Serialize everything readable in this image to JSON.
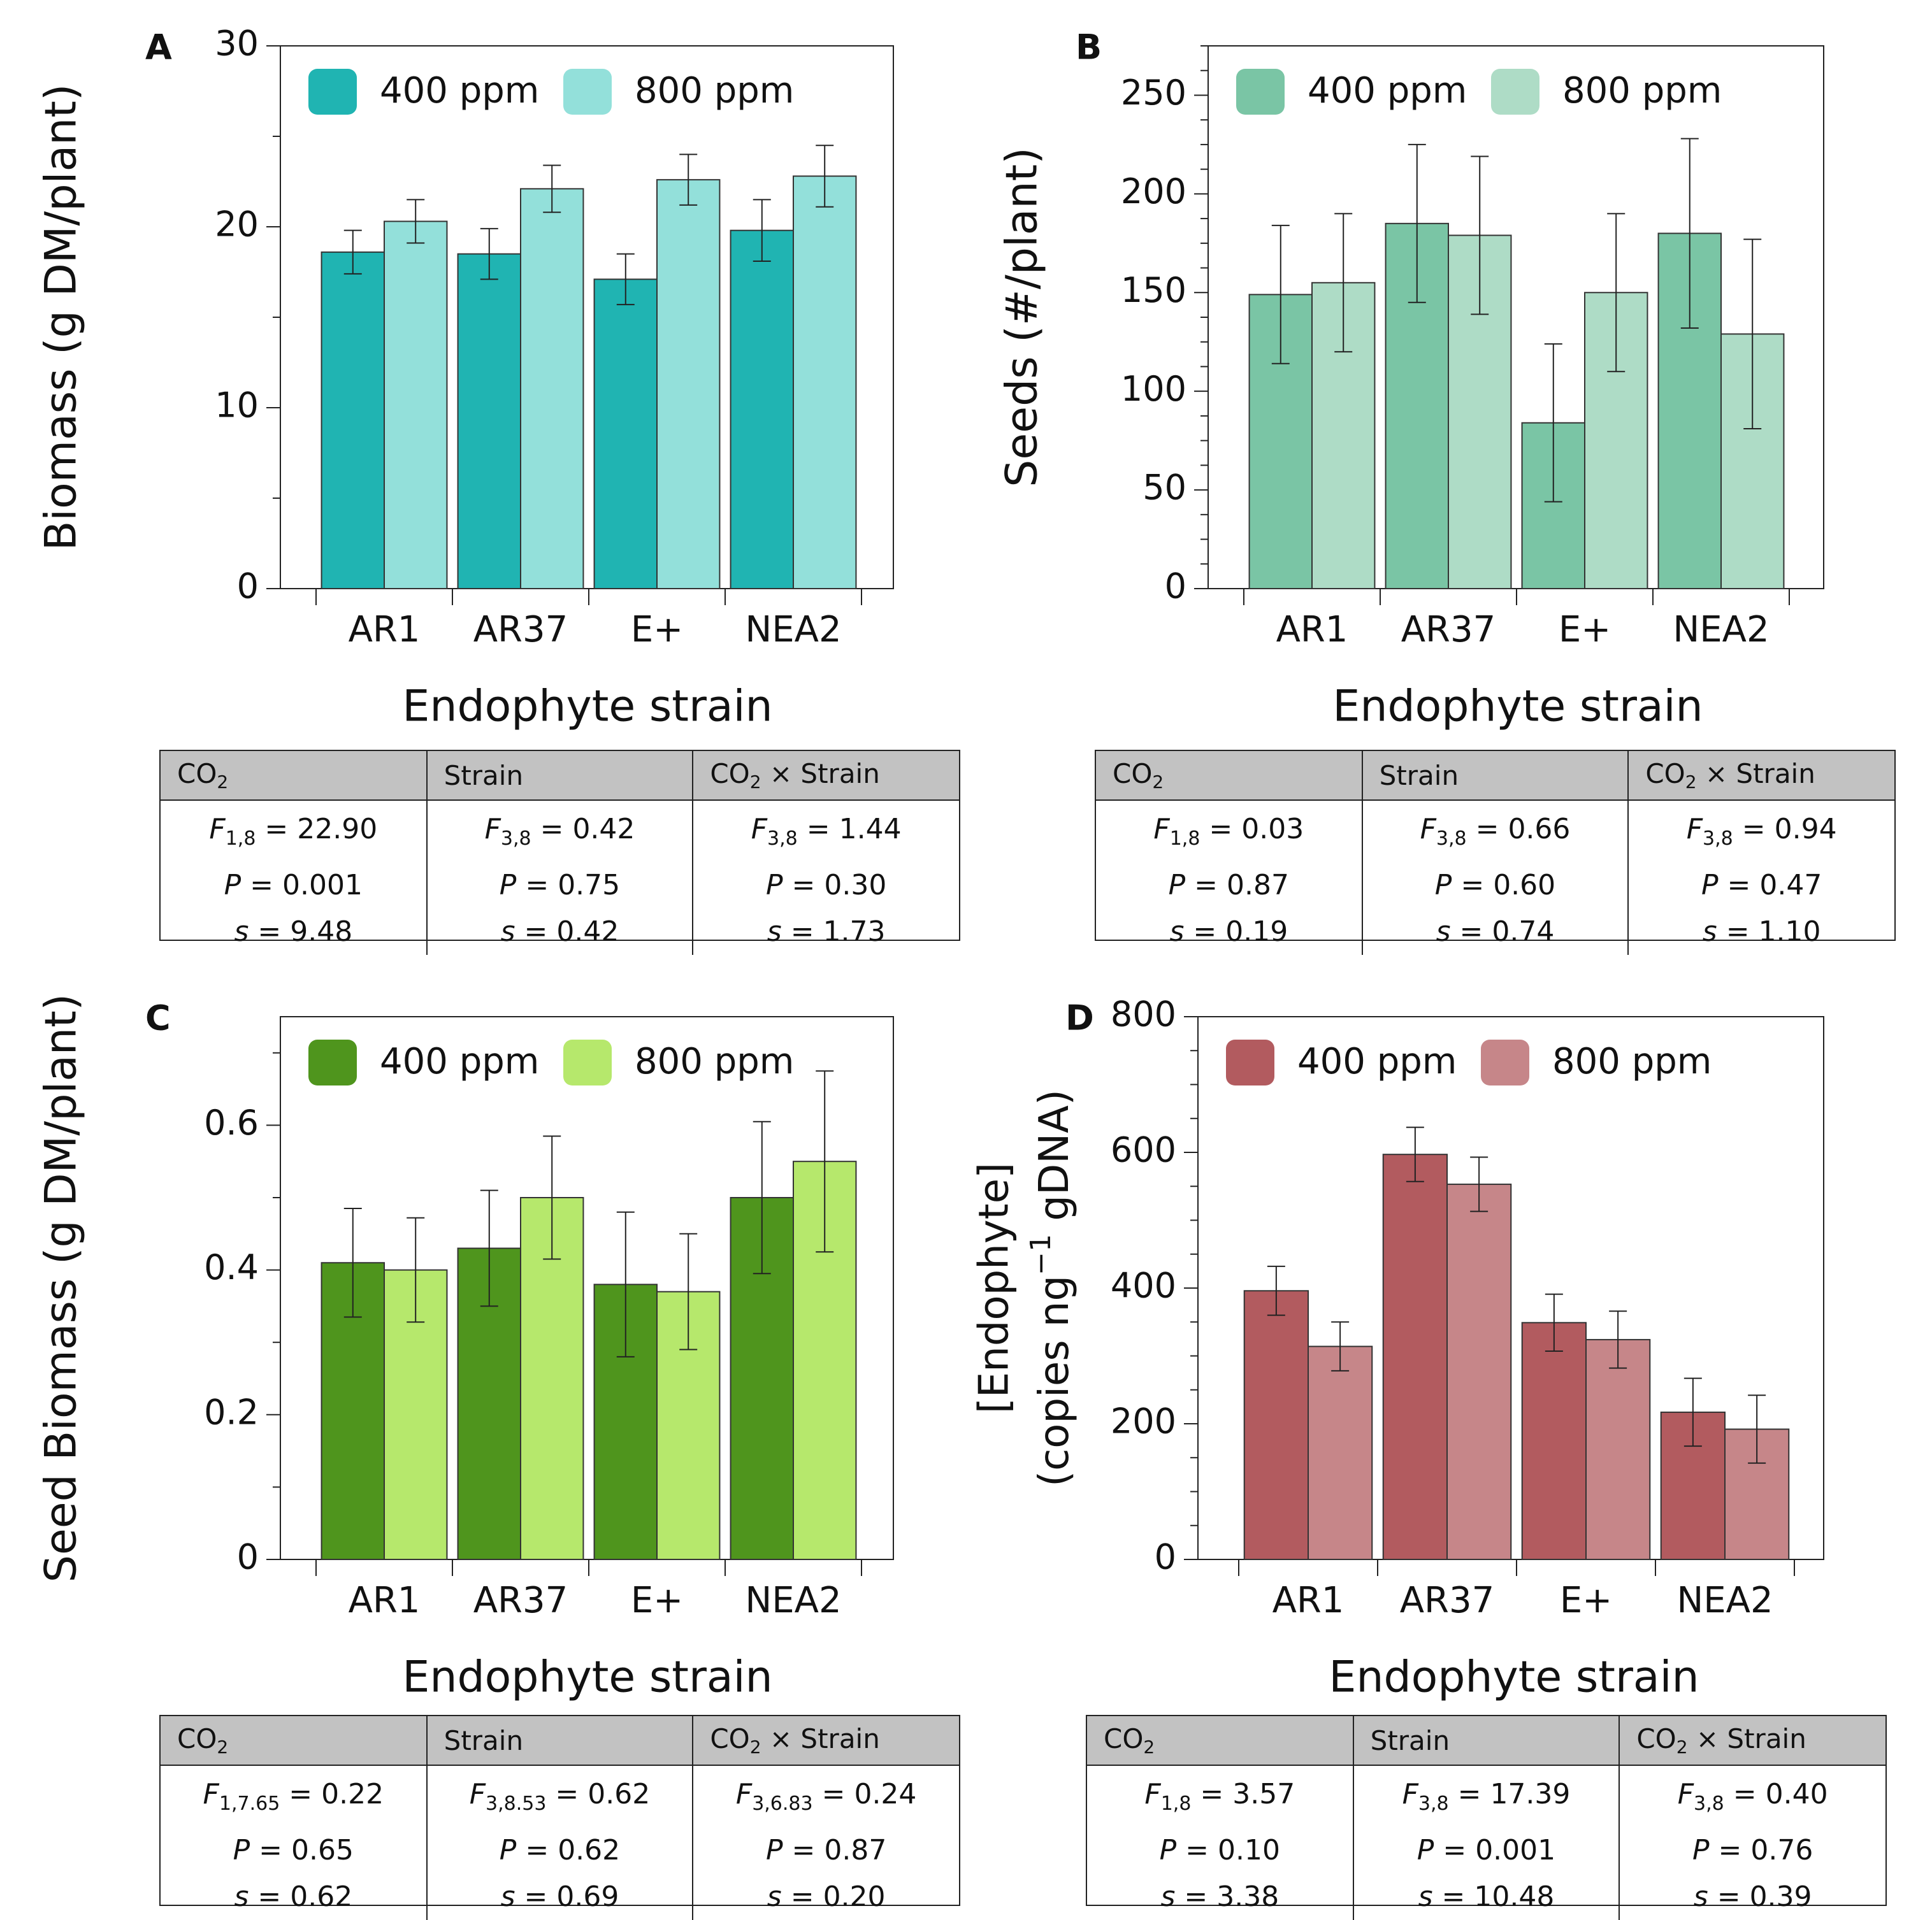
{
  "figure_title": "",
  "colors": {
    "A": {
      "c400": "#20b4b2",
      "c800": "#93e0da"
    },
    "B": {
      "c400": "#7ac5a5",
      "c800": "#aedcc6"
    },
    "C": {
      "c400": "#4f951d",
      "c800": "#b6e86c"
    },
    "D": {
      "c400": "#b25b5f",
      "c800": "#c68689"
    }
  },
  "chart_data": [
    {
      "id": "A",
      "panel_label": "A",
      "type": "bar",
      "categories": [
        "AR1",
        "AR37",
        "E+",
        "NEA2"
      ],
      "series": [
        {
          "name": "400 ppm",
          "values": [
            18.6,
            18.5,
            17.1,
            19.8
          ],
          "err": [
            1.2,
            1.4,
            1.4,
            1.7
          ]
        },
        {
          "name": "800 ppm",
          "values": [
            20.3,
            22.1,
            22.6,
            22.8
          ],
          "err": [
            1.2,
            1.3,
            1.4,
            1.7
          ]
        }
      ],
      "xlabel": "Endophyte strain",
      "ylabel_lines": [
        "Biomass (g DM/plant)"
      ],
      "ylim": [
        0,
        30
      ],
      "major_ticks": [
        0,
        10,
        20,
        30
      ],
      "tick_labels": [
        "0",
        "10",
        "20",
        "30"
      ],
      "minor_step": 5,
      "legend_position": "top-left",
      "stats": {
        "headers": {
          "co2": "CO",
          "co2_sub": "2",
          "strain": "Strain",
          "inter_pre": "CO",
          "inter_sub": "2",
          "inter_post": " × Strain"
        },
        "columns": [
          {
            "f_sub": "1,8",
            "f": "22.90",
            "p": "0.001",
            "s": "9.48"
          },
          {
            "f_sub": "3,8",
            "f": "0.42",
            "p": "0.75",
            "s": "0.42"
          },
          {
            "f_sub": "3,8",
            "f": "1.44",
            "p": "0.30",
            "s": "1.73"
          }
        ]
      }
    },
    {
      "id": "B",
      "panel_label": "B",
      "type": "bar",
      "categories": [
        "AR1",
        "AR37",
        "E+",
        "NEA2"
      ],
      "series": [
        {
          "name": "400 ppm",
          "values": [
            149,
            185,
            84,
            180
          ],
          "err": [
            35,
            40,
            40,
            48
          ]
        },
        {
          "name": "800 ppm",
          "values": [
            155,
            179,
            150,
            129
          ],
          "err": [
            35,
            40,
            40,
            48
          ]
        }
      ],
      "xlabel": "Endophyte strain",
      "ylabel_lines": [
        "Seeds (#/plant)"
      ],
      "ylim": [
        0,
        275
      ],
      "major_ticks": [
        0,
        50,
        100,
        150,
        200,
        250
      ],
      "tick_labels": [
        "0",
        "50",
        "100",
        "150",
        "200",
        "250"
      ],
      "minor_step": 12.5,
      "legend_position": "top-left",
      "stats": {
        "headers": {
          "co2": "CO",
          "co2_sub": "2",
          "strain": "Strain",
          "inter_pre": "CO",
          "inter_sub": "2",
          "inter_post": " × Strain"
        },
        "columns": [
          {
            "f_sub": "1,8",
            "f": "0.03",
            "p": "0.87",
            "s": "0.19"
          },
          {
            "f_sub": "3,8",
            "f": "0.66",
            "p": "0.60",
            "s": "0.74"
          },
          {
            "f_sub": "3,8",
            "f": "0.94",
            "p": "0.47",
            "s": "1.10"
          }
        ]
      }
    },
    {
      "id": "C",
      "panel_label": "C",
      "type": "bar",
      "categories": [
        "AR1",
        "AR37",
        "E+",
        "NEA2"
      ],
      "series": [
        {
          "name": "400 ppm",
          "values": [
            0.41,
            0.43,
            0.38,
            0.5
          ],
          "err": [
            0.075,
            0.08,
            0.1,
            0.105
          ]
        },
        {
          "name": "800 ppm",
          "values": [
            0.4,
            0.5,
            0.37,
            0.55
          ],
          "err": [
            0.072,
            0.085,
            0.08,
            0.125
          ]
        }
      ],
      "xlabel": "Endophyte strain",
      "ylabel_lines": [
        "Seed Biomass (g DM/plant)"
      ],
      "ylim": [
        0,
        0.75
      ],
      "major_ticks": [
        0,
        0.2,
        0.4,
        0.6
      ],
      "tick_labels": [
        "0",
        "0.2",
        "0.4",
        "0.6"
      ],
      "minor_step": 0.1,
      "legend_position": "top-left",
      "stats": {
        "headers": {
          "co2": "CO",
          "co2_sub": "2",
          "strain": "Strain",
          "inter_pre": "CO",
          "inter_sub": "2",
          "inter_post": " × Strain"
        },
        "columns": [
          {
            "f_sub": "1,7.65",
            "f": "0.22",
            "p": "0.65",
            "s": "0.62"
          },
          {
            "f_sub": "3,8.53",
            "f": "0.62",
            "p": "0.62",
            "s": "0.69"
          },
          {
            "f_sub": "3,6.83",
            "f": "0.24",
            "p": "0.87",
            "s": "0.20"
          }
        ]
      }
    },
    {
      "id": "D",
      "panel_label": "D",
      "type": "bar",
      "categories": [
        "AR1",
        "AR37",
        "E+",
        "NEA2"
      ],
      "series": [
        {
          "name": "400 ppm",
          "values": [
            396,
            597,
            349,
            217
          ],
          "err": [
            36,
            40,
            42,
            50
          ]
        },
        {
          "name": "800 ppm",
          "values": [
            314,
            553,
            324,
            192
          ],
          "err": [
            36,
            40,
            42,
            50
          ]
        }
      ],
      "xlabel": "Endophyte strain",
      "ylabel_lines": [
        "[Endophyte]",
        "(copies ng",
        "−1",
        " gDNA)"
      ],
      "ylim": [
        0,
        800
      ],
      "major_ticks": [
        0,
        200,
        400,
        600,
        800
      ],
      "tick_labels": [
        "0",
        "200",
        "400",
        "600",
        "800"
      ],
      "minor_step": 50,
      "legend_position": "top-left",
      "stats": {
        "headers": {
          "co2": "CO",
          "co2_sub": "2",
          "strain": "Strain",
          "inter_pre": "CO",
          "inter_sub": "2",
          "inter_post": " × Strain"
        },
        "columns": [
          {
            "f_sub": "1,8",
            "f": "3.57",
            "p": "0.10",
            "s": "3.38"
          },
          {
            "f_sub": "3,8",
            "f": "17.39",
            "p": "0.001",
            "s": "10.48"
          },
          {
            "f_sub": "3,8",
            "f": "0.40",
            "p": "0.76",
            "s": "0.39"
          }
        ]
      }
    }
  ]
}
